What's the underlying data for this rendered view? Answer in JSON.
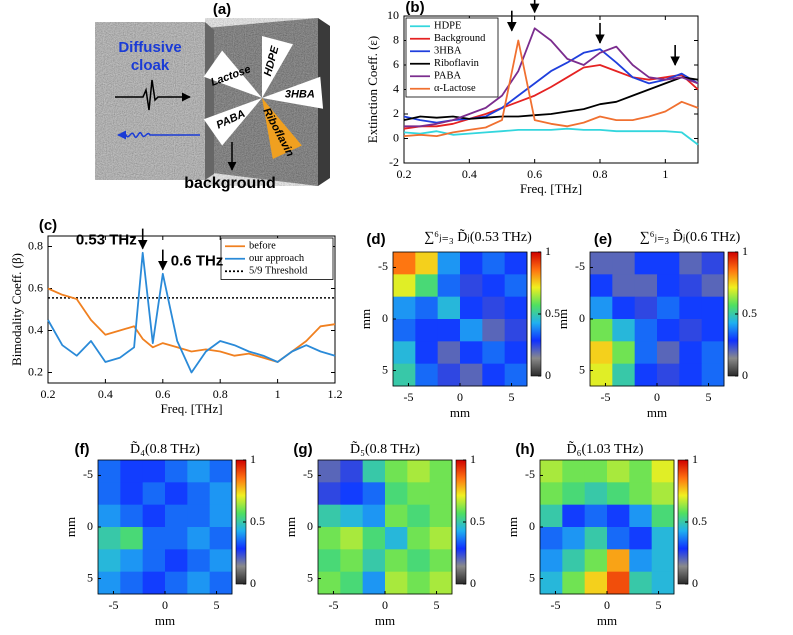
{
  "illustration": {
    "panel": "(a)",
    "cloak_label": [
      "Diffusive",
      "cloak"
    ],
    "samples": [
      "HDPE",
      "Lactose",
      "3HBA",
      "PABA",
      "Riboflavin"
    ],
    "background_label": "background"
  },
  "chart_data": [
    {
      "type": "line",
      "panel": "(b)",
      "xlabel": "Freq. [THz]",
      "ylabel": "Extinction Coeff. (ε)",
      "x": [
        0.2,
        0.25,
        0.3,
        0.35,
        0.4,
        0.45,
        0.5,
        0.55,
        0.6,
        0.65,
        0.7,
        0.75,
        0.8,
        0.85,
        0.9,
        0.95,
        1,
        1.05,
        1.1
      ],
      "series": [
        {
          "name": "HDPE",
          "color": "#33d6dd",
          "values": [
            0.5,
            0.4,
            0.6,
            0.3,
            0.4,
            0.5,
            0.6,
            0.7,
            0.7,
            0.7,
            0.8,
            0.7,
            0.7,
            0.6,
            0.6,
            0.6,
            0.6,
            0.5,
            -0.5
          ]
        },
        {
          "name": "Background",
          "color": "#e52222",
          "values": [
            0.8,
            1.0,
            1.0,
            1.2,
            1.6,
            2.0,
            2.5,
            3.0,
            3.5,
            4.2,
            5.0,
            5.8,
            6.0,
            5.5,
            5.0,
            4.8,
            5.0,
            5.2,
            4.0
          ]
        },
        {
          "name": "3HBA",
          "color": "#1f3fdd",
          "values": [
            1.8,
            1.5,
            1.3,
            1.5,
            1.6,
            1.8,
            2.5,
            3.5,
            4.5,
            5.5,
            6.2,
            7.0,
            7.3,
            6.2,
            5.0,
            4.5,
            4.8,
            5.3,
            4.5
          ]
        },
        {
          "name": "Riboflavin",
          "color": "#000000",
          "values": [
            1.5,
            1.8,
            1.7,
            1.8,
            1.6,
            1.7,
            1.8,
            1.8,
            1.9,
            2.0,
            2.2,
            2.4,
            2.8,
            3.0,
            3.5,
            4.0,
            4.5,
            5.0,
            4.8
          ]
        },
        {
          "name": "PABA",
          "color": "#7b2d8e",
          "values": [
            1.0,
            1.0,
            1.2,
            1.5,
            2.0,
            2.5,
            3.5,
            5.5,
            9.0,
            8.0,
            6.5,
            6.0,
            7.0,
            7.5,
            6.0,
            5.0,
            4.8,
            5.0,
            4.5
          ]
        },
        {
          "name": "α-Lactose",
          "color": "#f07030",
          "values": [
            0.2,
            0.3,
            0.2,
            0.5,
            0.7,
            0.9,
            1.5,
            8.0,
            1.5,
            1.2,
            1.0,
            1.3,
            1.8,
            1.5,
            1.5,
            1.8,
            2.2,
            3.0,
            2.5
          ]
        }
      ],
      "xlim": [
        0.2,
        1.1
      ],
      "xticks": [
        0.2,
        0.4,
        0.6,
        0.8,
        1
      ],
      "ylim": [
        -2,
        10
      ],
      "yticks": [
        -2,
        0,
        2,
        4,
        6,
        8,
        10
      ],
      "legend": "upper left",
      "arrows": [
        {
          "x": 0.53,
          "y": 8.8
        },
        {
          "x": 0.6,
          "y": 10.3
        },
        {
          "x": 0.8,
          "y": 7.8
        },
        {
          "x": 1.03,
          "y": 6.0
        }
      ]
    },
    {
      "type": "line",
      "panel": "(c)",
      "xlabel": "Freq. [THz]",
      "ylabel": "Bimodality Coeff. (β)",
      "x": [
        0.2,
        0.25,
        0.3,
        0.35,
        0.4,
        0.45,
        0.5,
        0.53,
        0.565,
        0.6,
        0.65,
        0.7,
        0.75,
        0.8,
        0.85,
        0.9,
        0.95,
        1,
        1.05,
        1.1,
        1.15,
        1.2
      ],
      "series": [
        {
          "name": "before",
          "color": "#f08020",
          "values": [
            0.6,
            0.57,
            0.55,
            0.45,
            0.38,
            0.4,
            0.42,
            0.36,
            0.32,
            0.34,
            0.32,
            0.3,
            0.31,
            0.3,
            0.28,
            0.29,
            0.27,
            0.25,
            0.3,
            0.35,
            0.42,
            0.43
          ]
        },
        {
          "name": "our approach",
          "color": "#2a8ad8",
          "values": [
            0.45,
            0.33,
            0.28,
            0.35,
            0.25,
            0.27,
            0.32,
            0.77,
            0.34,
            0.67,
            0.35,
            0.2,
            0.3,
            0.35,
            0.33,
            0.3,
            0.28,
            0.25,
            0.3,
            0.33,
            0.3,
            0.28
          ]
        }
      ],
      "threshold": {
        "name": "5/9 Threshold",
        "value": 0.5556,
        "color": "#000000"
      },
      "xlim": [
        0.2,
        1.2
      ],
      "xticks": [
        0.2,
        0.4,
        0.6,
        0.8,
        1,
        1.2
      ],
      "ylim": [
        0.15,
        0.85
      ],
      "yticks": [
        0.2,
        0.4,
        0.6,
        0.8
      ],
      "legend": "upper right",
      "annotations": [
        {
          "text": "0.53 THz",
          "x": 0.53,
          "y": 0.79
        },
        {
          "text": "0.6 THz",
          "x": 0.6,
          "y": 0.69
        }
      ]
    },
    {
      "type": "heatmap",
      "panel": "(d)",
      "title": "∑⁶ⱼ₌₃ D̃ⱼ(0.53 THz)",
      "xlabel": "mm",
      "ylabel": "mm",
      "xlim": [
        -6.5,
        6.5
      ],
      "ylim": [
        -6.5,
        6.5
      ],
      "y_inverted": true,
      "xticks": [
        -5,
        0,
        5
      ],
      "yticks": [
        -5,
        0,
        5
      ],
      "clim": [
        0,
        1
      ],
      "cticks": [
        0,
        0.5,
        1
      ],
      "colormap": [
        "#2a2a2a",
        "#8a8a8a",
        "#1030ff",
        "#20b0f0",
        "#50e060",
        "#f0f020",
        "#ff7010",
        "#d00000"
      ],
      "z": [
        [
          0.85,
          0.75,
          0.4,
          0.3,
          0.35,
          0.3
        ],
        [
          0.7,
          0.55,
          0.35,
          0.25,
          0.3,
          0.35
        ],
        [
          0.4,
          0.35,
          0.45,
          0.3,
          0.25,
          0.3
        ],
        [
          0.35,
          0.3,
          0.3,
          0.4,
          0.2,
          0.25
        ],
        [
          0.45,
          0.3,
          0.2,
          0.3,
          0.35,
          0.3
        ],
        [
          0.5,
          0.35,
          0.25,
          0.2,
          0.3,
          0.35
        ]
      ]
    },
    {
      "type": "heatmap",
      "panel": "(e)",
      "title": "∑⁶ⱼ₌₃ D̃ⱼ(0.6 THz)",
      "xlabel": "mm",
      "ylabel": "mm",
      "xlim": [
        -6.5,
        6.5
      ],
      "ylim": [
        -6.5,
        6.5
      ],
      "y_inverted": true,
      "xticks": [
        -5,
        0,
        5
      ],
      "yticks": [
        -5,
        0,
        5
      ],
      "clim": [
        0,
        1
      ],
      "cticks": [
        0,
        0.5,
        1
      ],
      "colormap": [
        "#2a2a2a",
        "#8a8a8a",
        "#1030ff",
        "#20b0f0",
        "#50e060",
        "#f0f020",
        "#ff7010",
        "#d00000"
      ],
      "z": [
        [
          0.2,
          0.2,
          0.3,
          0.3,
          0.2,
          0.25
        ],
        [
          0.3,
          0.2,
          0.2,
          0.3,
          0.25,
          0.2
        ],
        [
          0.4,
          0.3,
          0.25,
          0.35,
          0.3,
          0.3
        ],
        [
          0.6,
          0.45,
          0.35,
          0.3,
          0.25,
          0.3
        ],
        [
          0.75,
          0.6,
          0.35,
          0.2,
          0.3,
          0.35
        ],
        [
          0.7,
          0.5,
          0.3,
          0.25,
          0.3,
          0.35
        ]
      ]
    },
    {
      "type": "heatmap",
      "panel": "(f)",
      "title": "D̃₄(0.8 THz)",
      "xlabel": "mm",
      "ylabel": "mm",
      "xlim": [
        -6.5,
        6.5
      ],
      "ylim": [
        -6.5,
        6.5
      ],
      "y_inverted": true,
      "xticks": [
        -5,
        0,
        5
      ],
      "yticks": [
        -5,
        0,
        5
      ],
      "clim": [
        0,
        1
      ],
      "cticks": [
        0,
        0.5,
        1
      ],
      "colormap": [
        "#2a2a2a",
        "#8a8a8a",
        "#1030ff",
        "#20b0f0",
        "#50e060",
        "#f0f020",
        "#ff7010",
        "#d00000"
      ],
      "z": [
        [
          0.35,
          0.3,
          0.3,
          0.35,
          0.4,
          0.35
        ],
        [
          0.35,
          0.3,
          0.35,
          0.3,
          0.35,
          0.4
        ],
        [
          0.4,
          0.35,
          0.3,
          0.35,
          0.35,
          0.4
        ],
        [
          0.5,
          0.55,
          0.35,
          0.35,
          0.4,
          0.35
        ],
        [
          0.45,
          0.4,
          0.35,
          0.3,
          0.35,
          0.4
        ],
        [
          0.4,
          0.35,
          0.3,
          0.35,
          0.4,
          0.35
        ]
      ]
    },
    {
      "type": "heatmap",
      "panel": "(g)",
      "title": "D̃₅(0.8 THz)",
      "xlabel": "mm",
      "ylabel": "mm",
      "xlim": [
        -6.5,
        6.5
      ],
      "ylim": [
        -6.5,
        6.5
      ],
      "y_inverted": true,
      "xticks": [
        -5,
        0,
        5
      ],
      "yticks": [
        -5,
        0,
        5
      ],
      "clim": [
        0,
        1
      ],
      "cticks": [
        0,
        0.5,
        1
      ],
      "colormap": [
        "#2a2a2a",
        "#8a8a8a",
        "#1030ff",
        "#20b0f0",
        "#50e060",
        "#f0f020",
        "#ff7010",
        "#d00000"
      ],
      "z": [
        [
          0.2,
          0.25,
          0.5,
          0.6,
          0.65,
          0.6
        ],
        [
          0.25,
          0.3,
          0.35,
          0.55,
          0.6,
          0.6
        ],
        [
          0.5,
          0.45,
          0.4,
          0.6,
          0.55,
          0.6
        ],
        [
          0.6,
          0.65,
          0.55,
          0.45,
          0.6,
          0.65
        ],
        [
          0.55,
          0.6,
          0.5,
          0.6,
          0.55,
          0.6
        ],
        [
          0.6,
          0.55,
          0.4,
          0.65,
          0.6,
          0.65
        ]
      ]
    },
    {
      "type": "heatmap",
      "panel": "(h)",
      "title": "D̃₆(1.03 THz)",
      "xlabel": "mm",
      "ylabel": "mm",
      "xlim": [
        -6.5,
        6.5
      ],
      "ylim": [
        -6.5,
        6.5
      ],
      "y_inverted": true,
      "xticks": [
        -5,
        0,
        5
      ],
      "yticks": [
        -5,
        0,
        5
      ],
      "clim": [
        0,
        1
      ],
      "cticks": [
        0,
        0.5,
        1
      ],
      "colormap": [
        "#2a2a2a",
        "#8a8a8a",
        "#1030ff",
        "#20b0f0",
        "#50e060",
        "#f0f020",
        "#ff7010",
        "#d00000"
      ],
      "z": [
        [
          0.65,
          0.6,
          0.6,
          0.65,
          0.6,
          0.7
        ],
        [
          0.6,
          0.55,
          0.5,
          0.55,
          0.6,
          0.65
        ],
        [
          0.5,
          0.3,
          0.35,
          0.3,
          0.4,
          0.55
        ],
        [
          0.35,
          0.4,
          0.5,
          0.35,
          0.3,
          0.45
        ],
        [
          0.4,
          0.5,
          0.6,
          0.8,
          0.4,
          0.45
        ],
        [
          0.45,
          0.6,
          0.75,
          0.9,
          0.5,
          0.45
        ]
      ]
    }
  ]
}
